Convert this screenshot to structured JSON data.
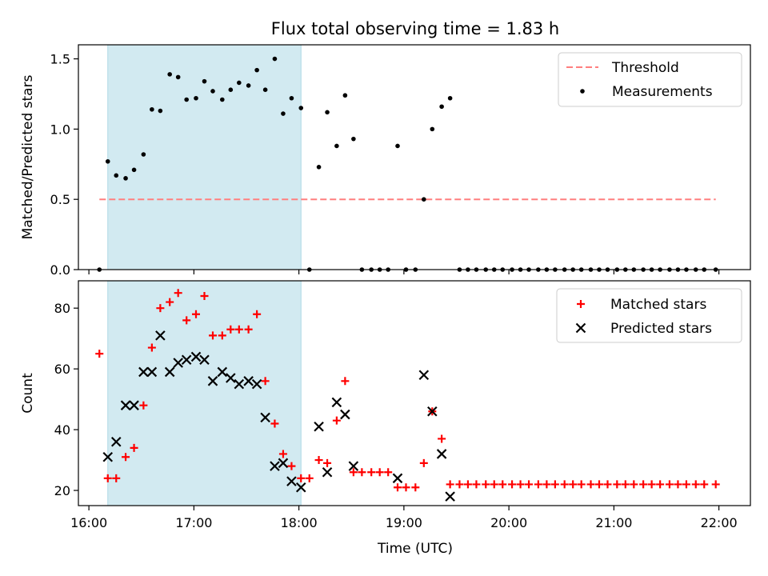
{
  "chart_data": {
    "type": "scatter",
    "title": "Flux total observing time = 1.83 h",
    "xlabel": "Time (UTC)",
    "x_ticks": [
      "16:00",
      "17:00",
      "18:00",
      "19:00",
      "20:00",
      "21:00",
      "22:00"
    ],
    "xlim_hours": [
      15.9,
      22.3
    ],
    "shaded_span_hours": [
      16.18,
      18.02
    ],
    "colors": {
      "shade": "#add8e6",
      "threshold": "#ff7f7f",
      "matched": "#ff0000",
      "predicted": "#000000",
      "measurements": "#000000"
    },
    "top": {
      "ylabel": "Matched/Predicted stars",
      "ylim": [
        0,
        1.6
      ],
      "y_ticks": [
        "0.0",
        "0.5",
        "1.0",
        "1.5"
      ],
      "threshold": {
        "name": "Threshold",
        "value": 0.5,
        "x_range": [
          16.1,
          21.97
        ]
      },
      "measurements": {
        "name": "Measurements",
        "x": [
          16.1,
          16.18,
          16.26,
          16.35,
          16.43,
          16.52,
          16.6,
          16.68,
          16.77,
          16.85,
          16.93,
          17.02,
          17.1,
          17.18,
          17.27,
          17.35,
          17.43,
          17.52,
          17.6,
          17.68,
          17.77,
          17.85,
          17.93,
          18.02,
          18.1,
          18.19,
          18.27,
          18.36,
          18.44,
          18.52,
          18.6,
          18.69,
          18.77,
          18.85,
          18.94,
          19.02,
          19.11,
          19.19,
          19.27,
          19.36,
          19.44,
          19.53,
          19.61,
          19.69,
          19.78,
          19.86,
          19.94,
          20.03,
          20.11,
          20.19,
          20.28,
          20.36,
          20.44,
          20.53,
          20.61,
          20.69,
          20.78,
          20.86,
          20.94,
          21.03,
          21.11,
          21.19,
          21.28,
          21.36,
          21.44,
          21.53,
          21.61,
          21.69,
          21.78,
          21.86,
          21.97
        ],
        "y": [
          0,
          0.77,
          0.67,
          0.65,
          0.71,
          0.82,
          1.14,
          1.13,
          1.39,
          1.37,
          1.21,
          1.22,
          1.34,
          1.27,
          1.21,
          1.28,
          1.33,
          1.31,
          1.42,
          1.28,
          1.5,
          1.11,
          1.22,
          1.15,
          0,
          0.73,
          1.12,
          0.88,
          1.24,
          0.93,
          0,
          0,
          0,
          0,
          0.88,
          0,
          0,
          0.5,
          1.0,
          1.16,
          1.22,
          0,
          0,
          0,
          0,
          0,
          0,
          0,
          0,
          0,
          0,
          0,
          0,
          0,
          0,
          0,
          0,
          0,
          0,
          0,
          0,
          0,
          0,
          0,
          0,
          0,
          0,
          0,
          0,
          0,
          0
        ]
      }
    },
    "bottom": {
      "ylabel": "Count",
      "ylim": [
        15,
        89
      ],
      "y_ticks": [
        "20",
        "40",
        "60",
        "80"
      ],
      "matched": {
        "name": "Matched stars",
        "x": [
          16.1,
          16.18,
          16.26,
          16.35,
          16.43,
          16.52,
          16.6,
          16.68,
          16.77,
          16.85,
          16.93,
          17.02,
          17.1,
          17.18,
          17.27,
          17.35,
          17.43,
          17.52,
          17.6,
          17.68,
          17.77,
          17.85,
          17.93,
          18.02,
          18.1,
          18.19,
          18.27,
          18.36,
          18.44,
          18.52,
          18.6,
          18.69,
          18.77,
          18.85,
          18.94,
          19.02,
          19.11,
          19.19,
          19.27,
          19.36,
          19.44,
          19.53,
          19.61,
          19.69,
          19.78,
          19.86,
          19.94,
          20.03,
          20.11,
          20.19,
          20.28,
          20.36,
          20.44,
          20.53,
          20.61,
          20.69,
          20.78,
          20.86,
          20.94,
          21.03,
          21.11,
          21.19,
          21.28,
          21.36,
          21.44,
          21.53,
          21.61,
          21.69,
          21.78,
          21.86,
          21.97
        ],
        "y": [
          65,
          24,
          24,
          31,
          34,
          48,
          67,
          80,
          82,
          85,
          76,
          78,
          84,
          71,
          71,
          73,
          73,
          73,
          78,
          56,
          42,
          32,
          28,
          24,
          24,
          30,
          29,
          43,
          56,
          26,
          26,
          26,
          26,
          26,
          21,
          21,
          21,
          29,
          46,
          37,
          22,
          22,
          22,
          22,
          22,
          22,
          22,
          22,
          22,
          22,
          22,
          22,
          22,
          22,
          22,
          22,
          22,
          22,
          22,
          22,
          22,
          22,
          22,
          22,
          22,
          22,
          22,
          22,
          22,
          22,
          22
        ]
      },
      "predicted": {
        "name": "Predicted stars",
        "x": [
          16.18,
          16.26,
          16.35,
          16.43,
          16.52,
          16.6,
          16.68,
          16.77,
          16.85,
          16.93,
          17.02,
          17.1,
          17.18,
          17.27,
          17.35,
          17.43,
          17.52,
          17.6,
          17.68,
          17.77,
          17.85,
          17.93,
          18.02,
          18.19,
          18.27,
          18.36,
          18.44,
          18.52,
          18.94,
          19.19,
          19.27,
          19.36,
          19.44
        ],
        "y": [
          31,
          36,
          48,
          48,
          59,
          59,
          71,
          59,
          62,
          63,
          64,
          63,
          56,
          59,
          57,
          55,
          56,
          55,
          44,
          28,
          29,
          23,
          21,
          41,
          26,
          49,
          45,
          28,
          24,
          58,
          46,
          32,
          18
        ]
      }
    }
  }
}
